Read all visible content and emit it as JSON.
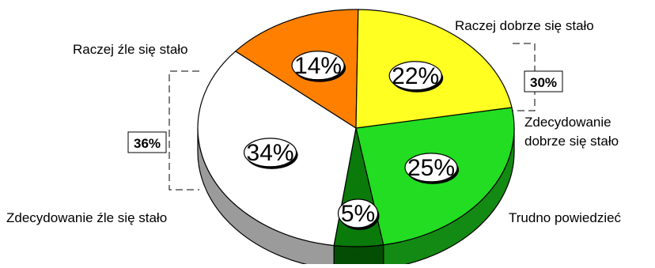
{
  "chart_data": {
    "type": "pie",
    "style": "3d-exploded",
    "slices": [
      {
        "label": "Raczej dobrze się stało",
        "value": 25,
        "display": "25%",
        "color": "#22dd22",
        "side_color": "#138a13"
      },
      {
        "label": "Zdecydowanie dobrze się stało",
        "value": 5,
        "display": "5%",
        "color": "#0a7a0a",
        "side_color": "#044d04"
      },
      {
        "label": "Trudno powiedzieć",
        "value": 34,
        "display": "34%",
        "color": "#ffffff",
        "side_color": "#9b9b9b"
      },
      {
        "label": "Zdecydowanie źle się stało",
        "value": 14,
        "display": "14%",
        "color": "#ff8000",
        "side_color": "#8a4a12"
      },
      {
        "label": "Raczej źle się stało",
        "value": 22,
        "display": "22%",
        "color": "#ffff22",
        "side_color": "#a8a800"
      }
    ],
    "groups": [
      {
        "display": "30%",
        "members": [
          "Raczej dobrze się stało",
          "Zdecydowanie dobrze się stało"
        ]
      },
      {
        "display": "36%",
        "members": [
          "Raczej źle się stało",
          "Zdecydowanie źle się stało"
        ]
      }
    ],
    "category_labels": {
      "raczej_dobrze": "Raczej dobrze się stało",
      "zdecydowanie_dobrze_line1": "Zdecydowanie",
      "zdecydowanie_dobrze_line2": "dobrze się stało",
      "trudno": "Trudno powiedzieć",
      "zdecydowanie_zle": "Zdecydowanie źle się stało",
      "raczej_zle": "Raczej źle się stało"
    },
    "legend": "none"
  }
}
